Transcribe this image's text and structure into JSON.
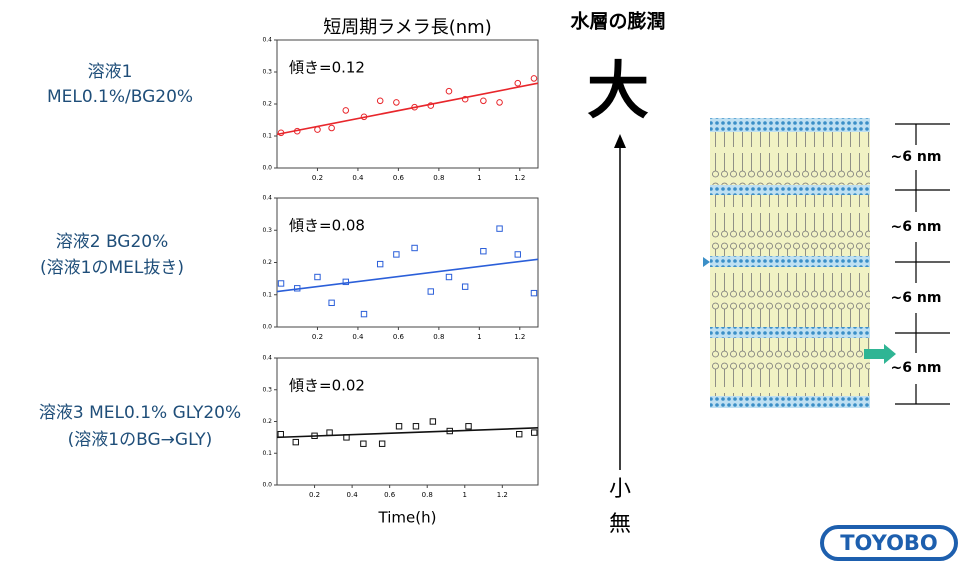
{
  "chart_data": [
    {
      "type": "scatter",
      "title": "短周期ラメラ長(nm)",
      "annotation": "傾き=0.12",
      "marker": "circle",
      "color": "#e8262b",
      "x": [
        0.02,
        0.1,
        0.2,
        0.27,
        0.34,
        0.43,
        0.51,
        0.59,
        0.68,
        0.76,
        0.85,
        0.93,
        1.02,
        1.1,
        1.19,
        1.27
      ],
      "values": [
        0.11,
        0.115,
        0.12,
        0.125,
        0.18,
        0.16,
        0.21,
        0.205,
        0.19,
        0.195,
        0.24,
        0.215,
        0.21,
        0.205,
        0.265,
        0.28
      ],
      "trend": {
        "x": [
          0,
          1.29
        ],
        "values": [
          0.105,
          0.265
        ]
      },
      "xlim": [
        0,
        1.29
      ],
      "xticks": [
        0.2,
        0.4,
        0.6,
        0.8,
        1,
        1.2
      ],
      "ylim": [
        0,
        0.4
      ],
      "yticks": [
        {
          "value": 0,
          "label": "0.0"
        },
        0.1,
        0.2,
        0.3,
        0.4
      ]
    },
    {
      "type": "scatter",
      "annotation": "傾き=0.08",
      "marker": "square",
      "color": "#2b5fd9",
      "x": [
        0.02,
        0.1,
        0.2,
        0.27,
        0.34,
        0.43,
        0.51,
        0.59,
        0.68,
        0.76,
        0.85,
        0.93,
        1.02,
        1.1,
        1.19,
        1.27
      ],
      "values": [
        0.135,
        0.12,
        0.155,
        0.075,
        0.14,
        0.04,
        0.195,
        0.225,
        0.245,
        0.11,
        0.155,
        0.125,
        0.235,
        0.305,
        0.225,
        0.105
      ],
      "trend": {
        "x": [
          0,
          1.29
        ],
        "values": [
          0.11,
          0.21
        ]
      },
      "xlim": [
        0,
        1.29
      ],
      "xticks": [
        0.2,
        0.4,
        0.6,
        0.8,
        1,
        1.2
      ],
      "ylim": [
        0,
        0.4
      ],
      "yticks": [
        {
          "value": 0,
          "label": "0.0"
        },
        0.1,
        0.2,
        0.3,
        0.4
      ]
    },
    {
      "type": "scatter",
      "annotation": "傾き=0.02",
      "marker": "square",
      "color": "#111111",
      "xlabel": "Time(h)",
      "x": [
        0.02,
        0.1,
        0.2,
        0.28,
        0.37,
        0.46,
        0.56,
        0.65,
        0.74,
        0.83,
        0.92,
        1.02,
        1.29,
        1.37
      ],
      "values": [
        0.16,
        0.135,
        0.155,
        0.165,
        0.15,
        0.13,
        0.13,
        0.185,
        0.185,
        0.2,
        0.17,
        0.185,
        0.16,
        0.165
      ],
      "trend": {
        "x": [
          0,
          1.39
        ],
        "values": [
          0.15,
          0.18
        ]
      },
      "xlim": [
        0,
        1.39
      ],
      "xticks": [
        0.2,
        0.4,
        0.6,
        0.8,
        1,
        1.2
      ],
      "ylim": [
        0,
        0.4
      ],
      "yticks": [
        {
          "value": 0,
          "label": "0.0"
        },
        0.1,
        0.2,
        0.3,
        0.4
      ]
    }
  ],
  "solutions": [
    {
      "lines": [
        "溶液1",
        "MEL0.1%/BG20%"
      ]
    },
    {
      "lines": [
        "溶液2  BG20%",
        "(溶液1のMEL抜き)"
      ]
    },
    {
      "lines": [
        "溶液3  MEL0.1% GLY20%",
        "(溶液1のBG→GLY)"
      ]
    }
  ],
  "swelling": {
    "title": "水層の膨潤",
    "large": "大",
    "small": "小",
    "none": "無"
  },
  "diagram": {
    "spacings": [
      "~6 nm",
      "~6 nm",
      "~6 nm",
      "~6 nm"
    ]
  },
  "logo": "TOYOBO"
}
